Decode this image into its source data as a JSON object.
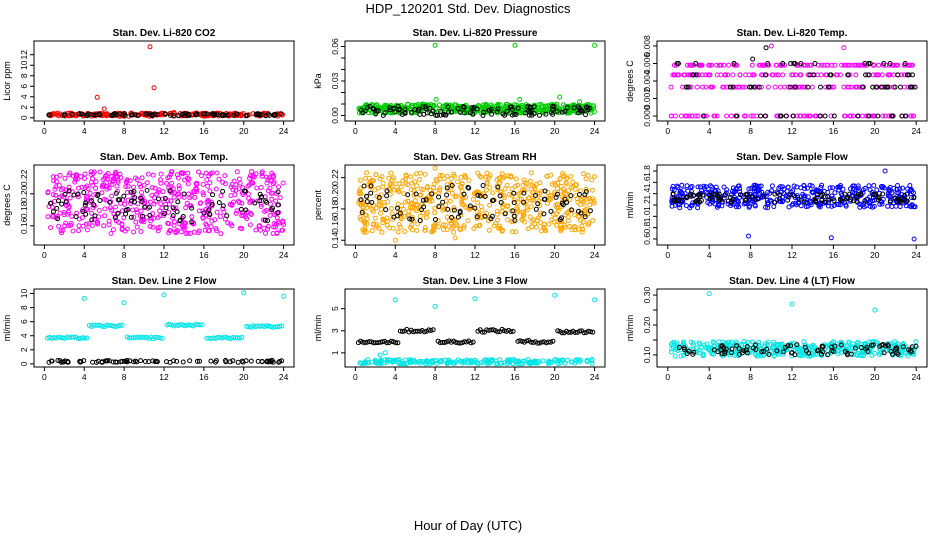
{
  "page": {
    "title": "HDP_120201  Std. Dev. Diagnostics",
    "xlabel": "Hour of Day (UTC)"
  },
  "colors": {
    "red": "#ff0000",
    "green": "#00cc00",
    "magenta": "#ff00ff",
    "orange": "#ffa500",
    "blue": "#0000ff",
    "cyan": "#00e5e5",
    "black": "#000000"
  },
  "chart_data": [
    {
      "type": "scatter",
      "title": "Stan. Dev. Li-820 CO2",
      "ylabel": "Licor ppm",
      "xlim": [
        0,
        24
      ],
      "ylim": [
        0,
        14
      ],
      "xticks": [
        0,
        4,
        8,
        12,
        16,
        20,
        24
      ],
      "xticklabels": [
        "0",
        "4",
        "8",
        "12",
        "16",
        "20",
        "24"
      ],
      "yticks": [
        0,
        2,
        4,
        6,
        8,
        10,
        12
      ],
      "yticklabels": [
        "0",
        "2",
        "4",
        "6",
        "8",
        "10",
        "12"
      ],
      "series": [
        {
          "name": "red",
          "color": "red",
          "band": [
            0.3,
            0.9
          ],
          "count": 220,
          "outliers": [
            [
              5.3,
              3.9
            ],
            [
              6.0,
              1.7
            ],
            [
              10.6,
              13.5
            ],
            [
              11.0,
              5.7
            ],
            [
              13.0,
              1.0
            ]
          ]
        },
        {
          "name": "black",
          "color": "black",
          "band": [
            0.4,
            0.8
          ],
          "count": 90,
          "outliers": []
        }
      ]
    },
    {
      "type": "scatter",
      "title": "Stan. Dev. Li-820 Pressure",
      "ylabel": "kPa",
      "xlim": [
        0,
        24
      ],
      "ylim": [
        -0.002,
        0.062
      ],
      "xticks": [
        0,
        4,
        8,
        12,
        16,
        20,
        24
      ],
      "xticklabels": [
        "0",
        "4",
        "8",
        "12",
        "16",
        "20",
        "24"
      ],
      "yticks": [
        0.0,
        0.03,
        0.06
      ],
      "yticklabels": [
        "0.00",
        "0.03",
        "0.06"
      ],
      "ylabelticks": [
        0.0,
        0.01,
        0.02,
        0.03,
        0.04,
        0.05,
        0.06
      ],
      "series": [
        {
          "name": "green",
          "color": "green",
          "band": [
            0.002,
            0.01
          ],
          "count": 480,
          "outliers": [
            [
              8.0,
              0.061
            ],
            [
              8.1,
              0.014
            ],
            [
              16.0,
              0.061
            ],
            [
              24.0,
              0.061
            ],
            [
              16.5,
              0.014
            ],
            [
              20.5,
              0.016
            ],
            [
              22.5,
              0.012
            ]
          ]
        },
        {
          "name": "black",
          "color": "black",
          "band": [
            0.0,
            0.008
          ],
          "count": 110,
          "outliers": []
        }
      ]
    },
    {
      "type": "scatter",
      "title": "Stan. Dev. Li-820 Temp.",
      "ylabel": "degrees C",
      "xlim": [
        0,
        24
      ],
      "ylim": [
        -0.0002,
        0.0082
      ],
      "xticks": [
        0,
        4,
        8,
        12,
        16,
        20,
        24
      ],
      "xticklabels": [
        "0",
        "4",
        "8",
        "12",
        "16",
        "20",
        "24"
      ],
      "yticks": [
        0.0,
        0.002,
        0.004,
        0.006,
        0.008
      ],
      "yticklabels": [
        "0.000",
        "0.002",
        "0.004",
        "0.006",
        "0.008"
      ],
      "series": [
        {
          "name": "magenta",
          "color": "magenta",
          "levels": [
            0.0,
            0.0033,
            0.0047,
            0.0058
          ],
          "count": 300,
          "outliers": [
            [
              10.0,
              0.008
            ],
            [
              17.0,
              0.0078
            ]
          ]
        },
        {
          "name": "black",
          "color": "black",
          "levels": [
            0.0,
            0.0033,
            0.0047,
            0.006
          ],
          "count": 80,
          "outliers": [
            [
              9.5,
              0.0078
            ],
            [
              8.2,
              0.0065
            ]
          ]
        }
      ]
    },
    {
      "type": "scatter",
      "title": "Stan. Dev. Amb. Box Temp.",
      "ylabel": "degrees C",
      "xlim": [
        0,
        24
      ],
      "ylim": [
        0.14,
        0.232
      ],
      "xticks": [
        0,
        4,
        8,
        12,
        16,
        20,
        24
      ],
      "xticklabels": [
        "0",
        "4",
        "8",
        "12",
        "16",
        "20",
        "24"
      ],
      "yticks": [
        0.16,
        0.18,
        0.2,
        0.22
      ],
      "yticklabels": [
        "0.16",
        "0.18",
        "0.20",
        "0.22"
      ],
      "ylabelticks": [
        0.16,
        0.2
      ],
      "series": [
        {
          "name": "magenta",
          "color": "magenta",
          "band": [
            0.15,
            0.228
          ],
          "count": 520,
          "outliers": []
        },
        {
          "name": "black",
          "color": "black",
          "band": [
            0.165,
            0.205
          ],
          "count": 90,
          "outliers": []
        }
      ]
    },
    {
      "type": "scatter",
      "title": "Stan. Dev. Gas Stream RH",
      "ylabel": "percent",
      "xlim": [
        0,
        24
      ],
      "ylim": [
        0.138,
        0.232
      ],
      "xticks": [
        0,
        4,
        8,
        12,
        16,
        20,
        24
      ],
      "xticklabels": [
        "0",
        "4",
        "8",
        "12",
        "16",
        "20",
        "24"
      ],
      "yticks": [
        0.14,
        0.16,
        0.18,
        0.2,
        0.22
      ],
      "yticklabels": [
        "0.14",
        "0.16",
        "0.18",
        "0.20",
        "0.22"
      ],
      "ylabelticks": [
        0.14,
        0.18,
        0.22
      ],
      "series": [
        {
          "name": "orange",
          "color": "orange",
          "band": [
            0.15,
            0.226
          ],
          "count": 560,
          "outliers": [
            [
              8.0,
              0.232
            ],
            [
              4.0,
              0.14
            ],
            [
              10.0,
              0.143
            ]
          ]
        },
        {
          "name": "black",
          "color": "black",
          "band": [
            0.165,
            0.21
          ],
          "count": 90,
          "outliers": []
        }
      ]
    },
    {
      "type": "scatter",
      "title": "Stan. Dev. Sample Flow",
      "ylabel": "ml/min",
      "xlim": [
        0,
        24
      ],
      "ylim": [
        0.55,
        1.85
      ],
      "xticks": [
        0,
        4,
        8,
        12,
        16,
        20,
        24
      ],
      "xticklabels": [
        "0",
        "4",
        "8",
        "12",
        "16",
        "20",
        "24"
      ],
      "yticks": [
        0.6,
        0.8,
        1.0,
        1.2,
        1.4,
        1.6,
        1.8
      ],
      "yticklabels": [
        "0.6",
        "0.8",
        "1.0",
        "1.2",
        "1.4",
        "1.6",
        "1.8"
      ],
      "series": [
        {
          "name": "blue",
          "color": "blue",
          "band": [
            1.15,
            1.55
          ],
          "count": 420,
          "outliers": [
            [
              7.8,
              0.65
            ],
            [
              15.8,
              0.62
            ],
            [
              23.8,
              0.6
            ],
            [
              21.0,
              1.8
            ]
          ]
        },
        {
          "name": "black",
          "color": "black",
          "band": [
            1.25,
            1.4
          ],
          "count": 100,
          "outliers": []
        }
      ]
    },
    {
      "type": "scatter",
      "title": "Stan. Dev. Line 2 Flow",
      "ylabel": "ml/min",
      "xlim": [
        0,
        24
      ],
      "ylim": [
        0,
        10.2
      ],
      "xticks": [
        0,
        4,
        8,
        12,
        16,
        20,
        24
      ],
      "xticklabels": [
        "0",
        "4",
        "8",
        "12",
        "16",
        "20",
        "24"
      ],
      "yticks": [
        0,
        2,
        4,
        6,
        8,
        10
      ],
      "yticklabels": [
        "0",
        "2",
        "4",
        "6",
        "8",
        "10"
      ],
      "series": [
        {
          "name": "cyan",
          "color": "cyan",
          "steps": [
            [
              0.3,
              4.3,
              3.7
            ],
            [
              4.5,
              8.0,
              5.4
            ],
            [
              8.3,
              12.0,
              3.7
            ],
            [
              12.3,
              16.0,
              5.5
            ],
            [
              16.3,
              20.0,
              3.7
            ],
            [
              20.3,
              24.0,
              5.3
            ]
          ],
          "count": 0,
          "outliers": [
            [
              4.0,
              9.3
            ],
            [
              8.0,
              8.7
            ],
            [
              12.0,
              9.8
            ],
            [
              20.0,
              10.1
            ],
            [
              24.0,
              9.6
            ]
          ]
        },
        {
          "name": "black",
          "color": "black",
          "band": [
            0.2,
            0.5
          ],
          "count": 80,
          "outliers": []
        }
      ]
    },
    {
      "type": "scatter",
      "title": "Stan. Dev. Line 3 Flow",
      "ylabel": "ml/min",
      "xlim": [
        0,
        24
      ],
      "ylim": [
        0,
        6.5
      ],
      "xticks": [
        0,
        4,
        8,
        12,
        16,
        20,
        24
      ],
      "xticklabels": [
        "0",
        "4",
        "8",
        "12",
        "16",
        "20",
        "24"
      ],
      "yticks": [
        1,
        3,
        5
      ],
      "yticklabels": [
        "1",
        "3",
        "5"
      ],
      "series": [
        {
          "name": "cyan",
          "color": "cyan",
          "band": [
            0.0,
            0.4
          ],
          "count": 200,
          "outliers": [
            [
              4.0,
              5.8
            ],
            [
              8.0,
              5.2
            ],
            [
              12.0,
              5.9
            ],
            [
              20.0,
              6.2
            ],
            [
              24.0,
              5.8
            ],
            [
              3.0,
              1.0
            ],
            [
              2.5,
              0.8
            ]
          ]
        },
        {
          "name": "black",
          "color": "black",
          "steps": [
            [
              0.3,
              4.3,
              2.0
            ],
            [
              4.5,
              8.0,
              3.0
            ],
            [
              8.3,
              12.0,
              2.0
            ],
            [
              12.3,
              16.0,
              3.0
            ],
            [
              16.3,
              20.0,
              2.0
            ],
            [
              20.3,
              24.0,
              2.9
            ]
          ],
          "count": 0,
          "outliers": []
        }
      ]
    },
    {
      "type": "scatter",
      "title": "Stan. Dev. Line 4 (LT) Flow",
      "ylabel": "ml/min",
      "xlim": [
        0,
        24
      ],
      "ylim": [
        0.07,
        0.31
      ],
      "xticks": [
        0,
        4,
        8,
        12,
        16,
        20,
        24
      ],
      "xticklabels": [
        "0",
        "4",
        "8",
        "12",
        "16",
        "20",
        "24"
      ],
      "yticks": [
        0.1,
        0.2,
        0.3
      ],
      "yticklabels": [
        "0.10",
        "0.20",
        "0.30"
      ],
      "ylabelticks": [
        0.1,
        0.15,
        0.2,
        0.25,
        0.3
      ],
      "series": [
        {
          "name": "cyan",
          "color": "cyan",
          "band": [
            0.095,
            0.145
          ],
          "count": 380,
          "outliers": [
            [
              4.0,
              0.305
            ],
            [
              12.0,
              0.27
            ],
            [
              20.0,
              0.25
            ]
          ]
        },
        {
          "name": "black",
          "color": "black",
          "band": [
            0.1,
            0.135
          ],
          "count": 90,
          "outliers": []
        }
      ]
    }
  ]
}
